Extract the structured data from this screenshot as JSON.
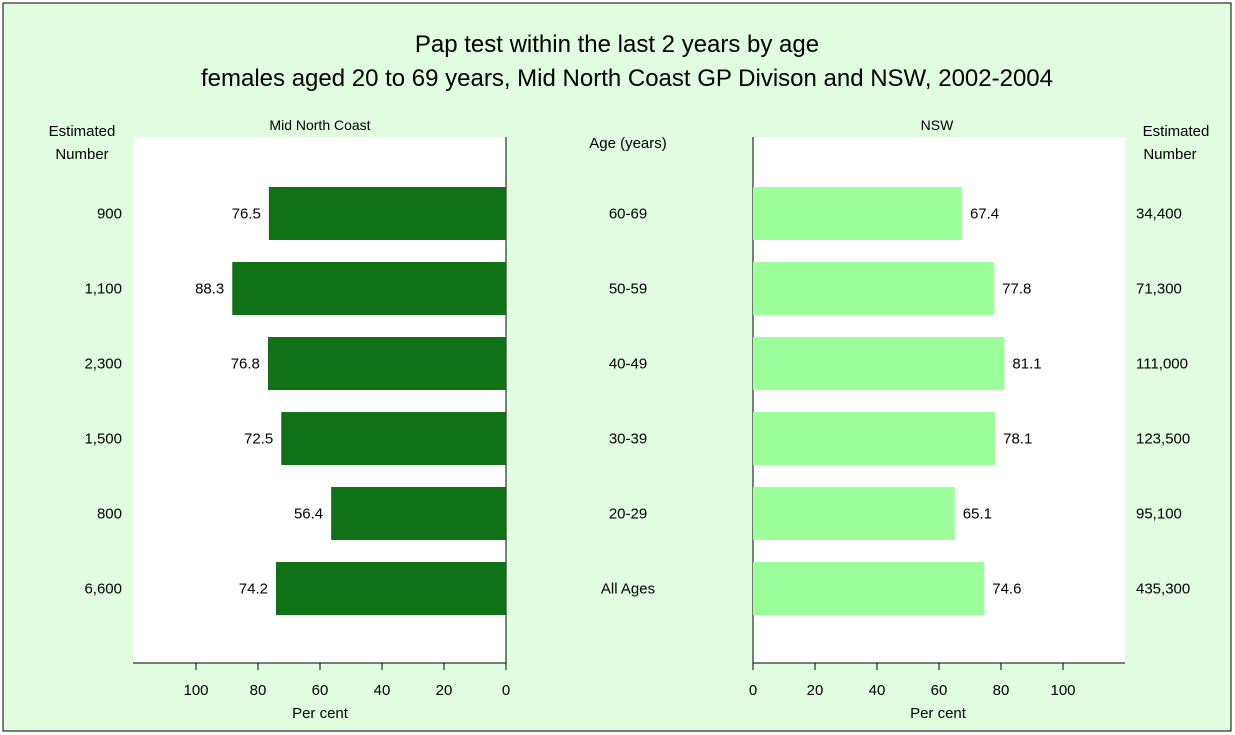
{
  "chart_data": {
    "type": "bar",
    "orientation": "horizontal",
    "title": "Pap test within the last 2 years by age",
    "subtitle": "females aged 20 to 69 years, Mid North Coast GP Divison and NSW, 2002-2004",
    "center_header": "Age (years)",
    "categories": [
      "60-69",
      "50-59",
      "40-49",
      "30-39",
      "20-29",
      "All Ages"
    ],
    "xlabel": "Per cent",
    "xlim": [
      0,
      120
    ],
    "xticks": [
      0,
      20,
      40,
      60,
      80,
      100
    ],
    "grid": false,
    "colors": {
      "background": "#e0fde0",
      "mid_north_coast": "#117117",
      "nsw": "#9cff9c",
      "plot_bg": "#ffffff"
    },
    "series": [
      {
        "name": "Mid North Coast",
        "values": [
          76.5,
          88.3,
          76.8,
          72.5,
          56.4,
          74.2
        ],
        "estimated_number_header": [
          "Estimated",
          "Number"
        ],
        "estimated_numbers": [
          "900",
          "1,100",
          "2,300",
          "1,500",
          "800",
          "6,600"
        ]
      },
      {
        "name": "NSW",
        "values": [
          67.4,
          77.8,
          81.1,
          78.1,
          65.1,
          74.6
        ],
        "estimated_number_header": [
          "Estimated",
          "Number"
        ],
        "estimated_numbers": [
          "34,400",
          "71,300",
          "111,000",
          "123,500",
          "95,100",
          "435,300"
        ]
      }
    ]
  }
}
